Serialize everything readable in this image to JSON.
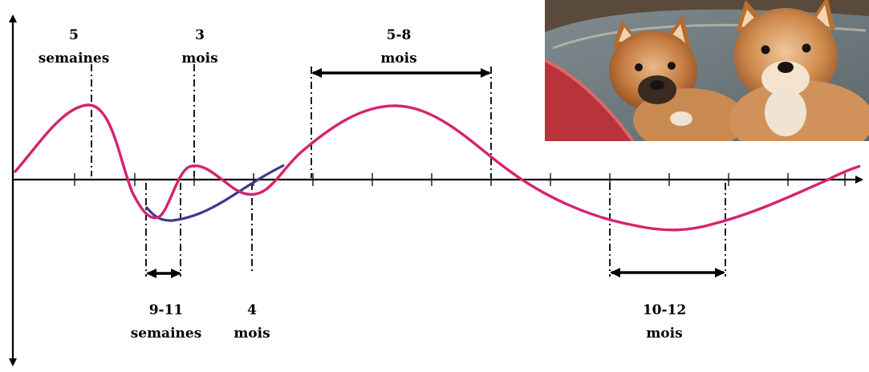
{
  "phases": [
    {
      "id": "p5w",
      "line1": "5",
      "line2": "semaines"
    },
    {
      "id": "p3m",
      "line1": "3",
      "line2": "mois"
    },
    {
      "id": "p58m",
      "line1": "5-8",
      "line2": "mois"
    },
    {
      "id": "p911w",
      "line1": "9-11",
      "line2": "semaines"
    },
    {
      "id": "p4m",
      "line1": "4",
      "line2": "mois"
    },
    {
      "id": "p1012m",
      "line1": "10-12",
      "line2": "mois"
    }
  ],
  "colors": {
    "main_curve": "#d6236f",
    "alt_curve": "#3a3a8f",
    "axis": "#000000"
  },
  "photo": {
    "subject": "two puppies on a cushion",
    "icon": "puppies-photo"
  }
}
